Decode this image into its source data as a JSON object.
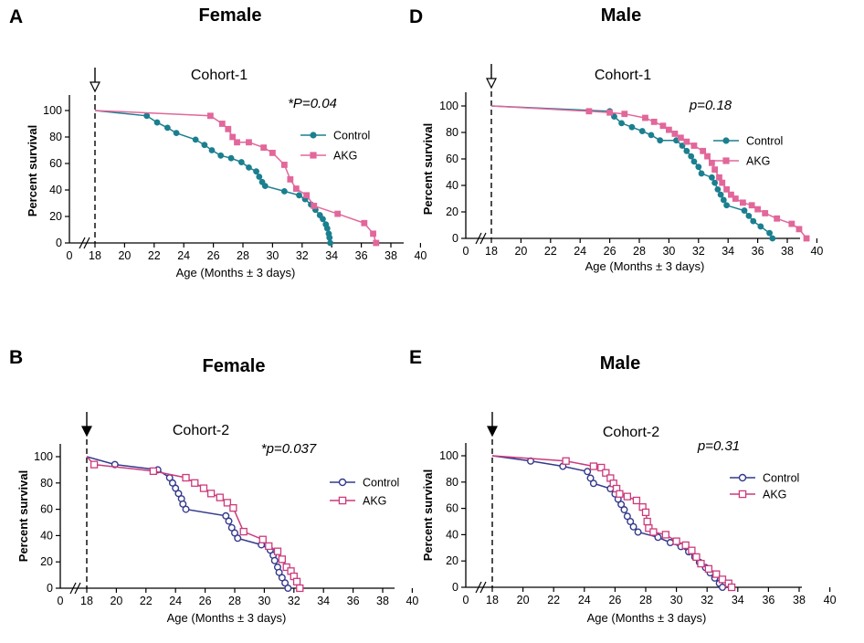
{
  "colors": {
    "teal": "#1b7f8f",
    "pink": "#e2679a",
    "navy": "#343a8c",
    "magenta": "#cc3a7c"
  },
  "chart_data": [
    {
      "id": "A",
      "type": "line",
      "letter": "A",
      "sex": "Female",
      "cohort": "Cohort-1",
      "pvalue": "*P=0.04",
      "xlabel": "Age (Months ± 3 days)",
      "ylabel": "Percent survival",
      "xticks": [
        "0",
        "18",
        "20",
        "22",
        "24",
        "26",
        "28",
        "30",
        "32",
        "34",
        "36",
        "38",
        "40"
      ],
      "yticks": [
        "0",
        "20",
        "40",
        "60",
        "80",
        "100"
      ],
      "xlim": [
        18,
        40
      ],
      "ylim": [
        0,
        100
      ],
      "grid": false,
      "legend_position": "right",
      "arrow_at": 18,
      "marker_style": "filled",
      "series": [
        {
          "name": "Control",
          "marker": "circle",
          "color": "teal",
          "points": [
            [
              18,
              100
            ],
            [
              21.5,
              96
            ],
            [
              22.2,
              91
            ],
            [
              22.9,
              87
            ],
            [
              23.5,
              83
            ],
            [
              24.8,
              78
            ],
            [
              25.4,
              74
            ],
            [
              25.9,
              70
            ],
            [
              26.5,
              66
            ],
            [
              27.2,
              64
            ],
            [
              27.9,
              61
            ],
            [
              28.4,
              57
            ],
            [
              28.9,
              54
            ],
            [
              29.1,
              50
            ],
            [
              29.3,
              46
            ],
            [
              29.5,
              43
            ],
            [
              30.8,
              39
            ],
            [
              31.8,
              36
            ],
            [
              32.2,
              33
            ],
            [
              32.6,
              29
            ],
            [
              32.9,
              25
            ],
            [
              33.2,
              21
            ],
            [
              33.4,
              18
            ],
            [
              33.6,
              14
            ],
            [
              33.7,
              11
            ],
            [
              33.8,
              7
            ],
            [
              33.85,
              4
            ],
            [
              33.9,
              0
            ]
          ]
        },
        {
          "name": "AKG",
          "marker": "square",
          "color": "pink",
          "points": [
            [
              18,
              100
            ],
            [
              25.8,
              96
            ],
            [
              26.6,
              90
            ],
            [
              27.0,
              86
            ],
            [
              27.3,
              80
            ],
            [
              27.6,
              76
            ],
            [
              28.4,
              76
            ],
            [
              29.4,
              72
            ],
            [
              30.0,
              68
            ],
            [
              30.8,
              59
            ],
            [
              31.2,
              48
            ],
            [
              31.6,
              41
            ],
            [
              32.3,
              36
            ],
            [
              32.8,
              28
            ],
            [
              34.4,
              22
            ],
            [
              36.2,
              15
            ],
            [
              36.8,
              7
            ],
            [
              37.0,
              0
            ]
          ]
        }
      ]
    },
    {
      "id": "B",
      "type": "line",
      "letter": "B",
      "sex": "Female",
      "cohort": "Cohort-2",
      "pvalue": "*p=0.037",
      "xlabel": "Age (Months ± 3 days)",
      "ylabel": "Percent survival",
      "xticks": [
        "0",
        "18",
        "20",
        "22",
        "24",
        "26",
        "28",
        "30",
        "32",
        "34",
        "36",
        "38",
        "40"
      ],
      "yticks": [
        "0",
        "20",
        "40",
        "60",
        "80",
        "100"
      ],
      "xlim": [
        18,
        40
      ],
      "ylim": [
        0,
        100
      ],
      "grid": false,
      "legend_position": "right",
      "arrow_at": 18,
      "marker_style": "open",
      "series": [
        {
          "name": "Control",
          "marker": "circle",
          "color": "navy",
          "points": [
            [
              18,
              100
            ],
            [
              19.9,
              94
            ],
            [
              22.8,
              90
            ],
            [
              23.6,
              84
            ],
            [
              23.8,
              80
            ],
            [
              24.0,
              76
            ],
            [
              24.2,
              72
            ],
            [
              24.4,
              68
            ],
            [
              24.5,
              64
            ],
            [
              24.7,
              60
            ],
            [
              27.4,
              55
            ],
            [
              27.6,
              51
            ],
            [
              27.8,
              46
            ],
            [
              28.0,
              42
            ],
            [
              28.2,
              38
            ],
            [
              29.8,
              33
            ],
            [
              30.4,
              29
            ],
            [
              30.6,
              25
            ],
            [
              30.7,
              21
            ],
            [
              30.9,
              16
            ],
            [
              31.0,
              12
            ],
            [
              31.2,
              8
            ],
            [
              31.4,
              4
            ],
            [
              31.6,
              0
            ]
          ]
        },
        {
          "name": "AKG",
          "marker": "square",
          "color": "magenta",
          "points": [
            [
              18,
              100
            ],
            [
              18.5,
              94
            ],
            [
              22.5,
              89
            ],
            [
              24.7,
              84
            ],
            [
              25.3,
              80
            ],
            [
              25.9,
              76
            ],
            [
              26.4,
              72
            ],
            [
              27.0,
              69
            ],
            [
              27.5,
              65
            ],
            [
              27.9,
              61
            ],
            [
              28.6,
              43
            ],
            [
              29.9,
              37
            ],
            [
              30.3,
              32
            ],
            [
              30.9,
              28
            ],
            [
              31.2,
              22
            ],
            [
              31.5,
              16
            ],
            [
              31.8,
              13
            ],
            [
              32.0,
              9
            ],
            [
              32.2,
              5
            ],
            [
              32.4,
              0
            ]
          ]
        }
      ]
    },
    {
      "id": "D",
      "type": "line",
      "letter": "D",
      "sex": "Male",
      "cohort": "Cohort-1",
      "pvalue": "p=0.18",
      "xlabel": "Age (Months ± 3 days)",
      "ylabel": "Percent survival",
      "xticks": [
        "0",
        "18",
        "20",
        "22",
        "24",
        "26",
        "28",
        "30",
        "32",
        "34",
        "36",
        "38",
        "40"
      ],
      "yticks": [
        "0",
        "20",
        "40",
        "60",
        "80",
        "100"
      ],
      "xlim": [
        18,
        40
      ],
      "ylim": [
        0,
        100
      ],
      "grid": false,
      "legend_position": "right",
      "arrow_at": 18,
      "marker_style": "filled",
      "series": [
        {
          "name": "Control",
          "marker": "circle",
          "color": "teal",
          "points": [
            [
              18,
              100
            ],
            [
              26.0,
              96
            ],
            [
              26.3,
              92
            ],
            [
              26.8,
              87
            ],
            [
              27.5,
              84
            ],
            [
              28.2,
              81
            ],
            [
              28.8,
              78
            ],
            [
              29.4,
              74
            ],
            [
              30.5,
              74
            ],
            [
              30.9,
              70
            ],
            [
              31.2,
              66
            ],
            [
              31.5,
              62
            ],
            [
              31.7,
              58
            ],
            [
              32.0,
              54
            ],
            [
              32.2,
              49
            ],
            [
              32.9,
              46
            ],
            [
              33.1,
              42
            ],
            [
              33.3,
              37
            ],
            [
              33.5,
              33
            ],
            [
              33.7,
              29
            ],
            [
              33.9,
              25
            ],
            [
              35.1,
              21
            ],
            [
              35.4,
              17
            ],
            [
              35.7,
              13
            ],
            [
              36.2,
              9
            ],
            [
              36.8,
              4
            ],
            [
              37.0,
              0
            ]
          ]
        },
        {
          "name": "AKG",
          "marker": "square",
          "color": "pink",
          "points": [
            [
              18,
              100
            ],
            [
              24.6,
              96
            ],
            [
              26.0,
              95
            ],
            [
              27.0,
              94
            ],
            [
              28.4,
              91
            ],
            [
              29.0,
              88
            ],
            [
              29.6,
              85
            ],
            [
              30.0,
              82
            ],
            [
              30.4,
              79
            ],
            [
              30.8,
              76
            ],
            [
              31.2,
              73
            ],
            [
              31.7,
              70
            ],
            [
              32.3,
              66
            ],
            [
              32.6,
              62
            ],
            [
              32.9,
              57
            ],
            [
              33.1,
              52
            ],
            [
              33.4,
              46
            ],
            [
              33.6,
              42
            ],
            [
              33.9,
              37
            ],
            [
              34.2,
              33
            ],
            [
              34.5,
              30
            ],
            [
              35.0,
              27
            ],
            [
              35.6,
              25
            ],
            [
              36.0,
              22
            ],
            [
              36.5,
              19
            ],
            [
              37.3,
              15
            ],
            [
              38.3,
              11
            ],
            [
              38.8,
              7
            ],
            [
              39.3,
              0
            ]
          ]
        }
      ]
    },
    {
      "id": "E",
      "type": "line",
      "letter": "E",
      "sex": "Male",
      "cohort": "Cohort-2",
      "pvalue": "p=0.31",
      "xlabel": "Age (Months ± 3 days)",
      "ylabel": "Percent survival",
      "xticks": [
        "0",
        "18",
        "20",
        "22",
        "24",
        "26",
        "28",
        "30",
        "32",
        "34",
        "36",
        "38",
        "40"
      ],
      "yticks": [
        "0",
        "20",
        "40",
        "60",
        "80",
        "100"
      ],
      "xlim": [
        18,
        40
      ],
      "ylim": [
        0,
        100
      ],
      "grid": false,
      "legend_position": "right",
      "arrow_at": 18,
      "marker_style": "open",
      "series": [
        {
          "name": "Control",
          "marker": "circle",
          "color": "navy",
          "points": [
            [
              18,
              100
            ],
            [
              20.5,
              96
            ],
            [
              22.6,
              92
            ],
            [
              24.2,
              88
            ],
            [
              24.4,
              83
            ],
            [
              24.6,
              79
            ],
            [
              25.7,
              75
            ],
            [
              26.0,
              71
            ],
            [
              26.2,
              67
            ],
            [
              26.4,
              63
            ],
            [
              26.6,
              59
            ],
            [
              26.8,
              54
            ],
            [
              27.0,
              50
            ],
            [
              27.2,
              46
            ],
            [
              27.5,
              42
            ],
            [
              28.8,
              38
            ],
            [
              29.6,
              34
            ],
            [
              30.3,
              31
            ],
            [
              30.8,
              27
            ],
            [
              31.2,
              23
            ],
            [
              31.5,
              19
            ],
            [
              31.9,
              15
            ],
            [
              32.2,
              11
            ],
            [
              32.5,
              7
            ],
            [
              32.8,
              3
            ],
            [
              33.0,
              0
            ]
          ]
        },
        {
          "name": "AKG",
          "marker": "square",
          "color": "magenta",
          "points": [
            [
              18,
              100
            ],
            [
              22.8,
              96
            ],
            [
              24.6,
              92
            ],
            [
              25.1,
              91
            ],
            [
              25.4,
              87
            ],
            [
              25.7,
              83
            ],
            [
              25.9,
              79
            ],
            [
              26.1,
              75
            ],
            [
              26.3,
              71
            ],
            [
              26.8,
              69
            ],
            [
              27.4,
              66
            ],
            [
              27.8,
              61
            ],
            [
              28.0,
              57
            ],
            [
              28.1,
              50
            ],
            [
              28.2,
              45
            ],
            [
              28.5,
              42
            ],
            [
              29.3,
              40
            ],
            [
              30.0,
              35
            ],
            [
              30.6,
              32
            ],
            [
              31.0,
              28
            ],
            [
              31.3,
              23
            ],
            [
              31.6,
              18
            ],
            [
              32.1,
              14
            ],
            [
              32.6,
              10
            ],
            [
              33.0,
              6
            ],
            [
              33.4,
              3
            ],
            [
              33.6,
              0
            ]
          ]
        }
      ]
    }
  ]
}
